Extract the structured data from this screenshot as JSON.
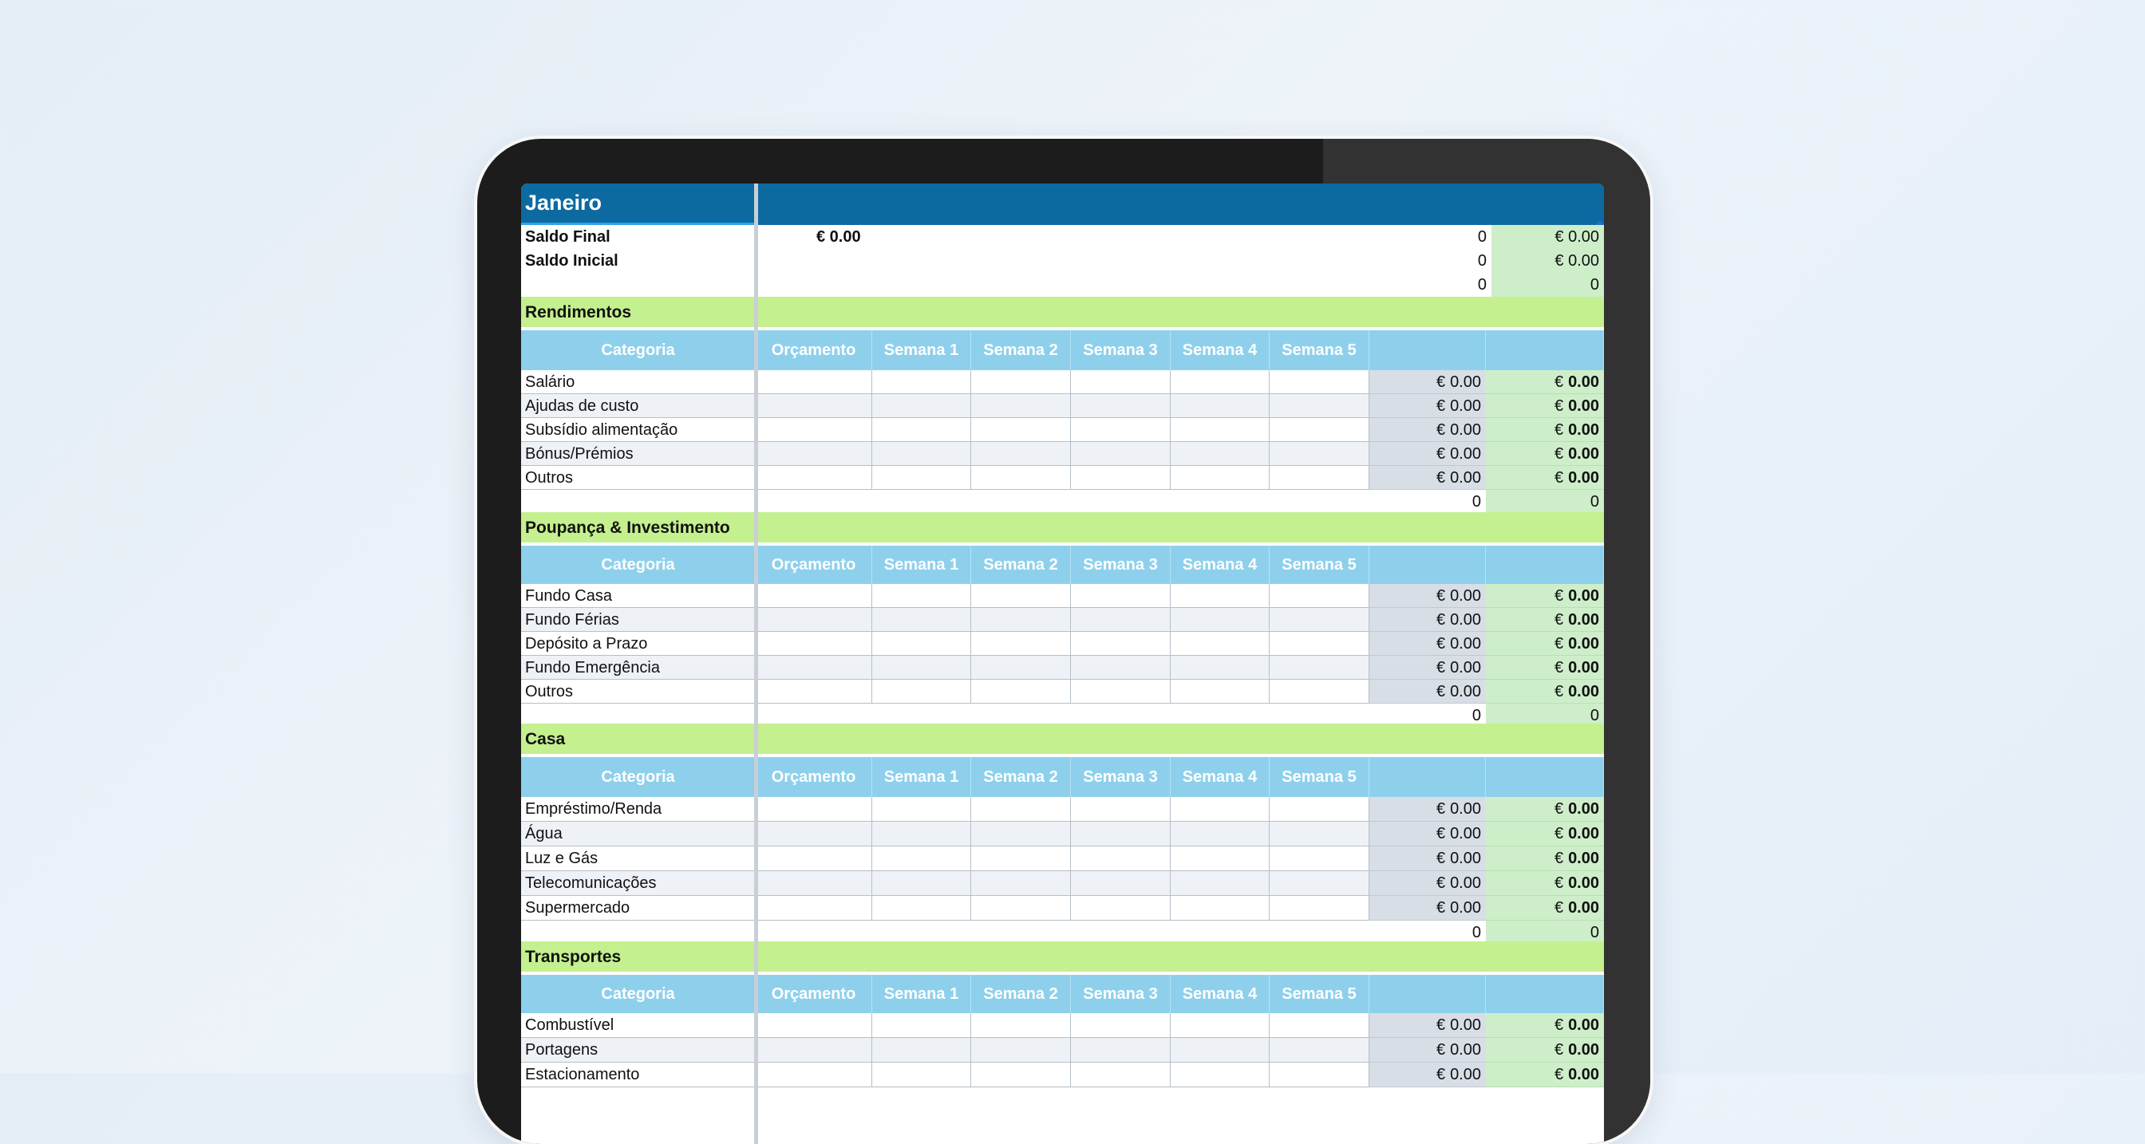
{
  "month_title": "Janeiro",
  "summary": {
    "saldo_final_label": "Saldo Final",
    "saldo_final_value": "€ 0.00",
    "saldo_final_count": "0",
    "saldo_final_total": "€ 0.00",
    "saldo_inicial_label": "Saldo Inicial",
    "saldo_inicial_count": "0",
    "saldo_inicial_total": "€ 0.00",
    "third_count": "0",
    "third_total": "0"
  },
  "column_headers": [
    "Categoria",
    "Orçamento",
    "Semana 1",
    "Semana 2",
    "Semana 3",
    "Semana 4",
    "Semana 5"
  ],
  "currency": "€",
  "zero_amount": "0.00",
  "subtotal_count": "0",
  "subtotal_total": "0",
  "sections": [
    {
      "title": "Rendimentos",
      "rows": [
        "Salário",
        "Ajudas de custo",
        "Subsídio alimentação",
        "Bónus/Prémios",
        "Outros"
      ]
    },
    {
      "title": "Poupança & Investimento",
      "rows": [
        "Fundo Casa",
        "Fundo Férias",
        "Depósito a Prazo",
        "Fundo Emergência",
        "Outros"
      ]
    },
    {
      "title": "Casa",
      "rows": [
        "Empréstimo/Renda",
        "Água",
        "Luz e Gás",
        "Telecomunicações",
        "Supermercado"
      ]
    },
    {
      "title": "Transportes",
      "rows": [
        "Combustível",
        "Portagens",
        "Estacionamento"
      ]
    }
  ],
  "colors": {
    "title_bar": "#0c6aa1",
    "section_header": "#c4f08f",
    "column_header": "#8ed0ec",
    "total_grey": "#d8dee6",
    "total_green": "#cdeec9"
  }
}
